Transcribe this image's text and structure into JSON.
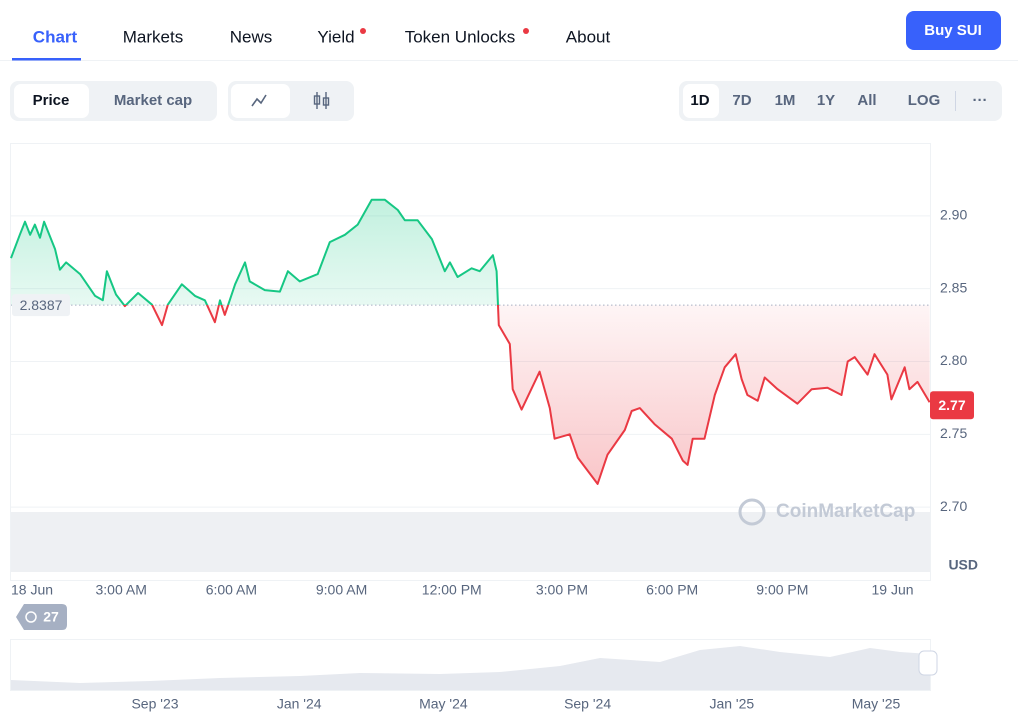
{
  "tabs": [
    "Chart",
    "Markets",
    "News",
    "Yield",
    "Token Unlocks",
    "About"
  ],
  "buy_button": "Buy SUI",
  "chart_modes": [
    "Price",
    "Market cap"
  ],
  "ranges": [
    "1D",
    "7D",
    "1M",
    "1Y",
    "All",
    "LOG"
  ],
  "more": "···",
  "events_count": 27,
  "navigator": {
    "labels": [
      "Sep '23",
      "Jan '24",
      "May '24",
      "Sep '24",
      "Jan '25",
      "May '25"
    ]
  },
  "chart_data": {
    "type": "line",
    "x": [
      0.0,
      0.24,
      0.38,
      0.52,
      0.65,
      0.79,
      0.9,
      1.2,
      1.33,
      1.5,
      1.88,
      2.29,
      2.5,
      2.61,
      2.86,
      3.1,
      3.46,
      3.84,
      4.11,
      4.27,
      4.65,
      5.01,
      5.28,
      5.55,
      5.69,
      5.82,
      6.1,
      6.37,
      6.5,
      6.91,
      7.32,
      7.54,
      7.86,
      8.35,
      8.68,
      9.09,
      9.44,
      9.82,
      10.18,
      10.53,
      10.72,
      11.07,
      11.46,
      11.81,
      11.95,
      12.16,
      12.54,
      12.76,
      13.12,
      13.22,
      13.28,
      13.58,
      13.66,
      13.9,
      14.39,
      14.67,
      14.8,
      15.21,
      15.43,
      15.97,
      16.24,
      16.71,
      16.9,
      17.12,
      17.52,
      17.99,
      18.29,
      18.42,
      18.56,
      18.88,
      19.16,
      19.43,
      19.73,
      19.89,
      20.05,
      20.33,
      20.52,
      20.87,
      21.41,
      21.8,
      22.23,
      22.61,
      22.78,
      22.97,
      23.32,
      23.51,
      23.86,
      23.97,
      24.33,
      24.46,
      24.68,
      25.01
    ],
    "values": [
      2.871,
      2.887,
      2.896,
      2.887,
      2.894,
      2.885,
      2.896,
      2.877,
      2.863,
      2.868,
      2.86,
      2.845,
      2.842,
      2.862,
      2.846,
      2.838,
      2.847,
      2.839,
      2.825,
      2.839,
      2.853,
      2.845,
      2.842,
      2.827,
      2.842,
      2.832,
      2.853,
      2.868,
      2.855,
      2.849,
      2.848,
      2.862,
      2.855,
      2.86,
      2.882,
      2.887,
      2.894,
      2.911,
      2.911,
      2.904,
      2.897,
      2.897,
      2.884,
      2.862,
      2.868,
      2.858,
      2.864,
      2.862,
      2.873,
      2.862,
      2.825,
      2.812,
      2.781,
      2.767,
      2.793,
      2.768,
      2.747,
      2.75,
      2.734,
      2.716,
      2.736,
      2.753,
      2.766,
      2.768,
      2.757,
      2.747,
      2.732,
      2.729,
      2.747,
      2.747,
      2.777,
      2.796,
      2.805,
      2.788,
      2.777,
      2.773,
      2.789,
      2.781,
      2.771,
      2.781,
      2.782,
      2.777,
      2.8,
      2.803,
      2.791,
      2.805,
      2.791,
      2.774,
      2.796,
      2.781,
      2.786,
      2.772
    ],
    "color_up": "#16c784",
    "color_down": "#ea3943",
    "reference_price": 2.8387,
    "current_price": 2.77,
    "y_unit": "USD",
    "watermark": "CoinMarketCap",
    "xlim": [
      0,
      25.02
    ],
    "xticks": [
      {
        "value": 0,
        "label": "18 Jun"
      },
      {
        "value": 3,
        "label": "3:00 AM"
      },
      {
        "value": 6,
        "label": "6:00 AM"
      },
      {
        "value": 9,
        "label": "9:00 AM"
      },
      {
        "value": 12,
        "label": "12:00 PM"
      },
      {
        "value": 15,
        "label": "3:00 PM"
      },
      {
        "value": 18,
        "label": "6:00 PM"
      },
      {
        "value": 21,
        "label": "9:00 PM"
      },
      {
        "value": 24,
        "label": "19 Jun"
      }
    ],
    "ylim": [
      2.65,
      2.95
    ],
    "yticks": [
      {
        "value": 2.7,
        "label": "2.70"
      },
      2.75,
      {
        "value": 2.8,
        "label": "2.80"
      },
      2.85,
      {
        "value": 2.9,
        "label": "2.90"
      }
    ],
    "grid": true
  }
}
